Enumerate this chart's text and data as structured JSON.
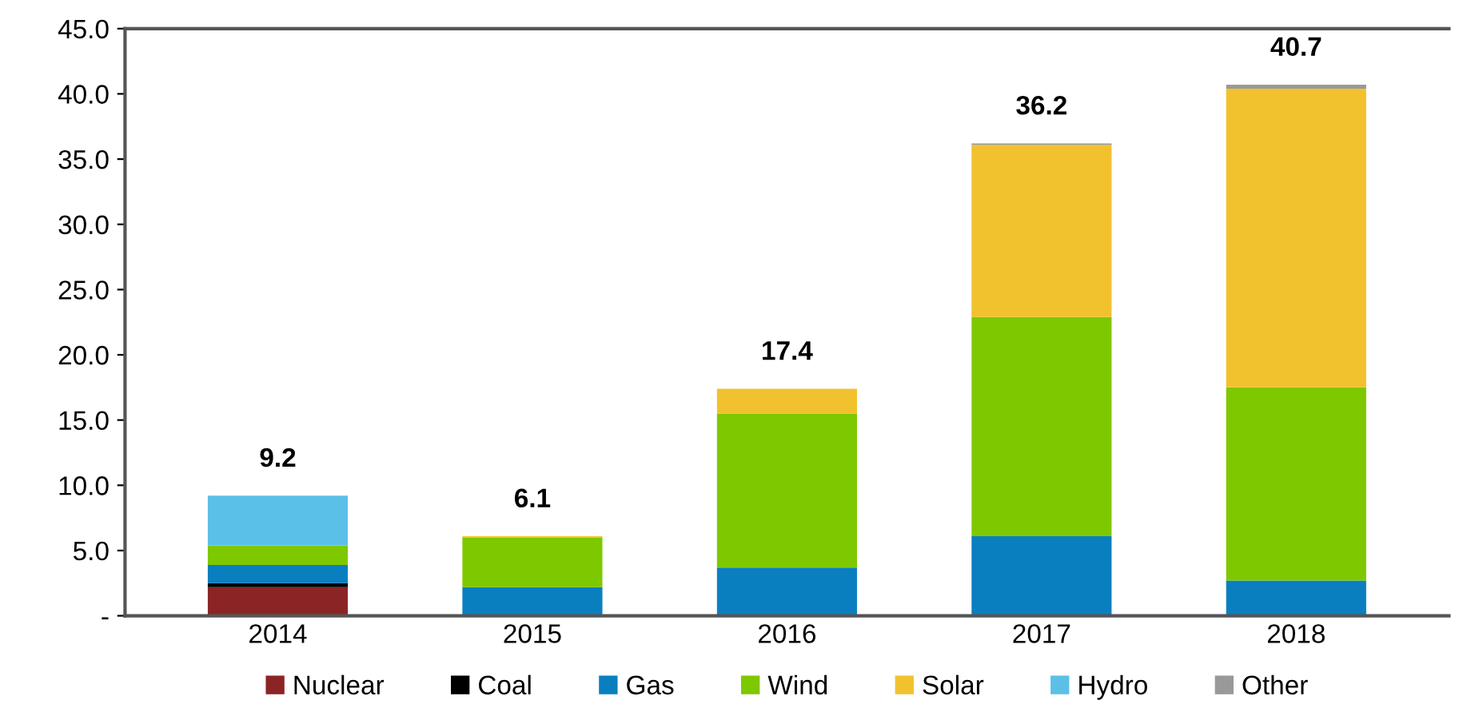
{
  "chart_data": {
    "type": "bar",
    "stacked": true,
    "categories": [
      "2014",
      "2015",
      "2016",
      "2017",
      "2018"
    ],
    "series": [
      {
        "name": "Nuclear",
        "color": "#8b2525",
        "values": [
          2.2,
          0,
          0,
          0,
          0
        ]
      },
      {
        "name": "Coal",
        "color": "#000000",
        "values": [
          0.3,
          0,
          0,
          0,
          0
        ]
      },
      {
        "name": "Gas",
        "color": "#0a7fc0",
        "values": [
          1.4,
          2.2,
          3.7,
          6.1,
          2.7
        ]
      },
      {
        "name": "Wind",
        "color": "#7ec800",
        "values": [
          1.5,
          3.8,
          11.8,
          16.8,
          14.8
        ]
      },
      {
        "name": "Solar",
        "color": "#f2c12e",
        "values": [
          0,
          0.1,
          1.9,
          13.2,
          22.9
        ]
      },
      {
        "name": "Hydro",
        "color": "#5bc0e8",
        "values": [
          3.8,
          0,
          0,
          0,
          0
        ]
      },
      {
        "name": "Other",
        "color": "#999999",
        "values": [
          0,
          0,
          0,
          0.1,
          0.3
        ]
      }
    ],
    "totals": [
      "9.2",
      "6.1",
      "17.4",
      "36.2",
      "40.7"
    ],
    "ylim": [
      0,
      45
    ],
    "yticks": [
      {
        "value": 0,
        "label": "-"
      },
      {
        "value": 5,
        "label": "5.0"
      },
      {
        "value": 10,
        "label": "10.0"
      },
      {
        "value": 15,
        "label": "15.0"
      },
      {
        "value": 20,
        "label": "20.0"
      },
      {
        "value": 25,
        "label": "25.0"
      },
      {
        "value": 30,
        "label": "30.0"
      },
      {
        "value": 35,
        "label": "35.0"
      },
      {
        "value": 40,
        "label": "40.0"
      },
      {
        "value": 45,
        "label": "45.0"
      }
    ],
    "grid": false,
    "legend": "bottom"
  }
}
